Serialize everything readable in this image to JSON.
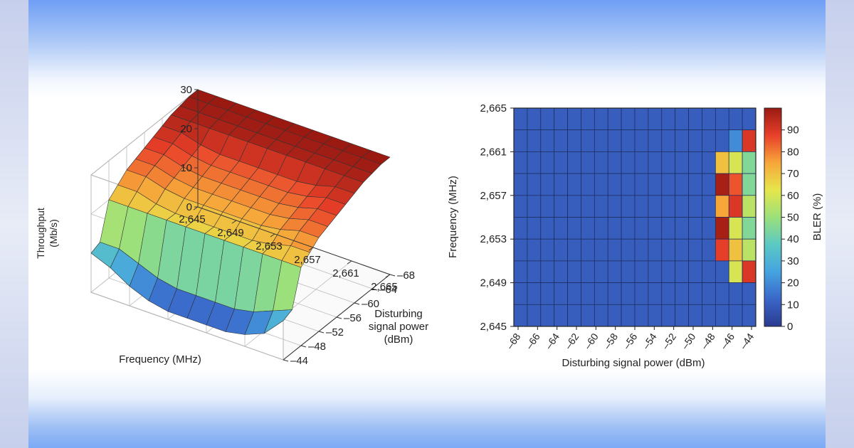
{
  "chart_data": [
    {
      "type": "surface",
      "xlabel": "Frequency (MHz)",
      "ylabel": "Disturbing signal power (dBm)",
      "ylabel_lines": [
        "Disturbing",
        "signal power",
        "(dBm)"
      ],
      "zlabel_lines": [
        "Throughput",
        "(Mb/s)"
      ],
      "x_ticks": [
        "2,645",
        "2,649",
        "2,653",
        "2,657",
        "2,661",
        "2,665"
      ],
      "y_ticks": [
        "–68",
        "–64",
        "–60",
        "–56",
        "–52",
        "–48",
        "–44"
      ],
      "z_ticks": [
        "0",
        "10",
        "20",
        "30"
      ],
      "xlim": [
        2645,
        2665
      ],
      "ylim": [
        -68,
        -44
      ],
      "zlim": [
        0,
        30
      ],
      "frequencies": [
        2645,
        2647,
        2649,
        2651,
        2653,
        2655,
        2657,
        2659,
        2661,
        2663,
        2665
      ],
      "powers": [
        -68,
        -66,
        -64,
        -62,
        -60,
        -58,
        -56,
        -54,
        -52,
        -50,
        -48,
        -46,
        -44
      ],
      "throughput_profile_by_power": [
        30,
        30,
        29.5,
        29,
        28,
        27,
        26,
        25,
        24,
        22,
        20,
        11,
        6
      ],
      "throughput_low_band_by_freq": [
        10,
        8,
        5,
        3,
        2,
        2,
        2,
        2,
        3,
        5,
        10
      ],
      "colorscale": [
        "#2a3a8f",
        "#3a67c9",
        "#45a3e0",
        "#5cc9c4",
        "#9be07a",
        "#e6e64a",
        "#f7a63a",
        "#e8402a",
        "#9a1a12"
      ]
    },
    {
      "type": "heatmap",
      "xlabel": "Disturbing signal power (dBm)",
      "ylabel": "Frequency (MHz)",
      "colorbar_label": "BLER (%)",
      "x_ticks": [
        "–68",
        "–66",
        "–64",
        "–62",
        "–60",
        "–58",
        "–56",
        "–54",
        "–52",
        "–50",
        "–48",
        "–46",
        "–44"
      ],
      "y_ticks": [
        "2,665",
        "2,661",
        "2,657",
        "2,653",
        "2,649",
        "2,645"
      ],
      "colorbar_ticks": [
        "0",
        "10",
        "20",
        "30",
        "40",
        "50",
        "60",
        "70",
        "80",
        "90"
      ],
      "zlim": [
        0,
        100
      ],
      "background_value": 10,
      "rows": 10,
      "cols": 18,
      "hot_cells": [
        {
          "row": 1,
          "col": 17,
          "value": 90
        },
        {
          "row": 1,
          "col": 16,
          "value": 20
        },
        {
          "row": 2,
          "col": 15,
          "value": 70
        },
        {
          "row": 2,
          "col": 16,
          "value": 60
        },
        {
          "row": 2,
          "col": 17,
          "value": 45
        },
        {
          "row": 3,
          "col": 15,
          "value": 98
        },
        {
          "row": 3,
          "col": 16,
          "value": 85
        },
        {
          "row": 3,
          "col": 17,
          "value": 45
        },
        {
          "row": 4,
          "col": 15,
          "value": 75
        },
        {
          "row": 4,
          "col": 16,
          "value": 90
        },
        {
          "row": 4,
          "col": 17,
          "value": 55
        },
        {
          "row": 5,
          "col": 15,
          "value": 98
        },
        {
          "row": 5,
          "col": 16,
          "value": 60
        },
        {
          "row": 5,
          "col": 17,
          "value": 45
        },
        {
          "row": 6,
          "col": 15,
          "value": 88
        },
        {
          "row": 6,
          "col": 16,
          "value": 70
        },
        {
          "row": 6,
          "col": 17,
          "value": 55
        },
        {
          "row": 7,
          "col": 16,
          "value": 60
        },
        {
          "row": 7,
          "col": 17,
          "value": 90
        }
      ],
      "colorscale": [
        "#2a3a8f",
        "#3a67c9",
        "#45a3e0",
        "#5cc9c4",
        "#9be07a",
        "#e6e64a",
        "#f7a63a",
        "#e8402a",
        "#9a1a12"
      ]
    }
  ]
}
